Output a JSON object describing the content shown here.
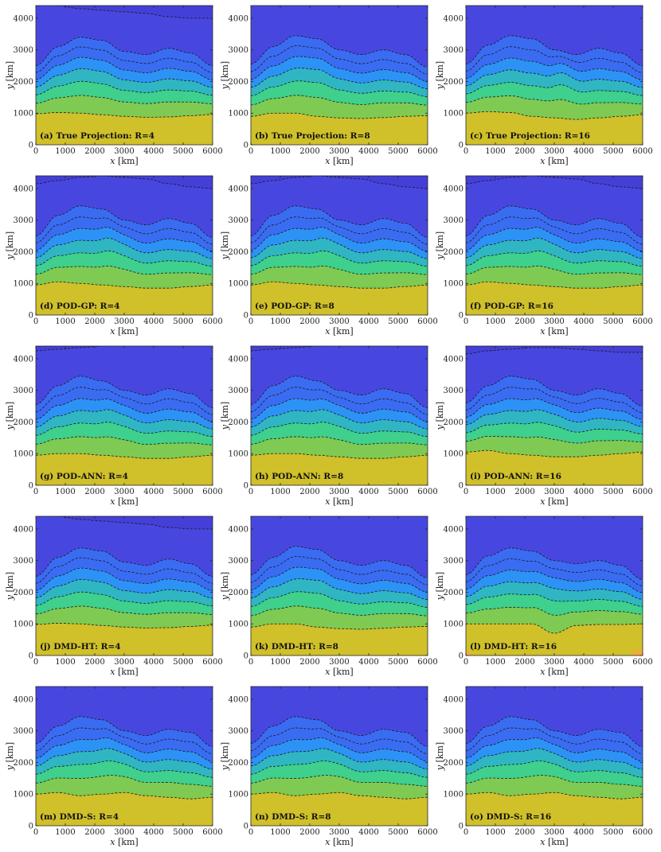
{
  "figure": {
    "xlabel_var": "x",
    "xlabel_unit": " [km]",
    "ylabel_var": "y",
    "ylabel_unit": " [km]",
    "x_ticks": [
      "0",
      "1000",
      "2000",
      "3000",
      "4000",
      "5000",
      "6000"
    ],
    "y_ticks": [
      "0",
      "1000",
      "2000",
      "3000",
      "4000"
    ]
  },
  "colors": {
    "levels": [
      "#d0c02a",
      "#7fca52",
      "#3ed08c",
      "#2fb6c2",
      "#2d92f5",
      "#3a6cf2",
      "#4747e0",
      "#4138cf",
      "#3a2eb6"
    ],
    "warm_patch": "#f5a83b"
  },
  "chart_data": {
    "type": "contour",
    "xlim": [
      0,
      6000
    ],
    "ylim": [
      0,
      4400
    ],
    "x_ticks": [
      0,
      1000,
      2000,
      3000,
      4000,
      5000,
      6000
    ],
    "y_ticks": [
      0,
      1000,
      2000,
      3000,
      4000
    ],
    "xlabel": "x [km]",
    "ylabel": "y [km]",
    "grid": false,
    "panels": [
      {
        "label": "(a) True Projection: R=4",
        "method": "True Projection",
        "R": 4,
        "variant": 0
      },
      {
        "label": "(b) True Projection: R=8",
        "method": "True Projection",
        "R": 8,
        "variant": 1
      },
      {
        "label": "(c) True Projection: R=16",
        "method": "True Projection",
        "R": 16,
        "variant": 2
      },
      {
        "label": "(d) POD-GP: R=4",
        "method": "POD-GP",
        "R": 4,
        "variant": 3
      },
      {
        "label": "(e) POD-GP: R=8",
        "method": "POD-GP",
        "R": 8,
        "variant": 3
      },
      {
        "label": "(f) POD-GP: R=16",
        "method": "POD-GP",
        "R": 16,
        "variant": 3
      },
      {
        "label": "(g) POD-ANN: R=4",
        "method": "POD-ANN",
        "R": 4,
        "variant": 4
      },
      {
        "label": "(h) POD-ANN: R=8",
        "method": "POD-ANN",
        "R": 8,
        "variant": 4
      },
      {
        "label": "(i) POD-ANN: R=16",
        "method": "POD-ANN",
        "R": 16,
        "variant": 5
      },
      {
        "label": "(j) DMD-HT: R=4",
        "method": "DMD-HT",
        "R": 4,
        "variant": 0
      },
      {
        "label": "(k) DMD-HT: R=8",
        "method": "DMD-HT",
        "R": 8,
        "variant": 1
      },
      {
        "label": "(l) DMD-HT: R=16",
        "method": "DMD-HT",
        "R": 16,
        "variant": 6
      },
      {
        "label": "(m) DMD-S: R=4",
        "method": "DMD-S",
        "R": 4,
        "variant": 7
      },
      {
        "label": "(n) DMD-S: R=8",
        "method": "DMD-S",
        "R": 8,
        "variant": 7
      },
      {
        "label": "(o) DMD-S: R=16",
        "method": "DMD-S",
        "R": 16,
        "variant": 7
      }
    ],
    "field_variants": [
      {
        "lower_boundary_km": [
          980,
          1020,
          1000,
          950,
          900,
          870,
          880,
          920,
          960
        ],
        "interface_bumps": [
          {
            "x": 1800,
            "amp": 80,
            "w": 900
          }
        ],
        "upper_boundary_km": [
          2500,
          3100,
          3400,
          3300,
          2950,
          2850,
          3050,
          2900,
          2500
        ],
        "top_line_km": [
          4450,
          4400,
          4300,
          4250,
          4200,
          4150,
          4050,
          4000,
          4000
        ]
      },
      {
        "lower_boundary_km": [
          900,
          1000,
          1000,
          900,
          850,
          830,
          860,
          900,
          920
        ],
        "interface_bumps": [
          {
            "x": 2200,
            "amp": 120,
            "w": 800
          }
        ],
        "upper_boundary_km": [
          2550,
          3100,
          3450,
          3350,
          3000,
          2850,
          3000,
          2850,
          2450
        ],
        "top_line_km": [
          4450,
          4450,
          4450,
          4450,
          4450,
          4450,
          4450,
          4450,
          4450
        ]
      },
      {
        "lower_boundary_km": [
          1000,
          1050,
          1020,
          900,
          850,
          800,
          850,
          900,
          950
        ],
        "interface_bumps": [
          {
            "x": 3300,
            "amp": 260,
            "w": 500
          }
        ],
        "upper_boundary_km": [
          2550,
          3150,
          3450,
          3350,
          3000,
          2850,
          3050,
          2900,
          2500
        ],
        "top_line_km": [
          4450,
          4450,
          4450,
          4450,
          4450,
          4450,
          4450,
          4450,
          4450
        ]
      },
      {
        "lower_boundary_km": [
          950,
          1050,
          1000,
          950,
          900,
          850,
          850,
          900,
          950
        ],
        "interface_bumps": [
          {
            "x": 2700,
            "amp": 230,
            "w": 550
          }
        ],
        "upper_boundary_km": [
          2500,
          3150,
          3450,
          3350,
          3000,
          2850,
          3050,
          2900,
          2450
        ],
        "top_line_km": [
          4150,
          4250,
          4350,
          4400,
          4350,
          4300,
          4150,
          4050,
          4000
        ]
      },
      {
        "lower_boundary_km": [
          950,
          1000,
          1000,
          950,
          900,
          850,
          850,
          900,
          950
        ],
        "interface_bumps": [
          {
            "x": 2700,
            "amp": 200,
            "w": 600
          }
        ],
        "upper_boundary_km": [
          2550,
          3150,
          3450,
          3300,
          3000,
          2850,
          3050,
          2900,
          2450
        ],
        "top_line_km": [
          4250,
          4300,
          4350,
          4400,
          4450,
          4450,
          4450,
          4450,
          4450
        ]
      },
      {
        "lower_boundary_km": [
          1050,
          1100,
          1000,
          950,
          900,
          900,
          950,
          1000,
          1050
        ],
        "interface_bumps": [
          {
            "x": 2800,
            "amp": 200,
            "w": 600
          }
        ],
        "upper_boundary_km": [
          2600,
          3150,
          3450,
          3350,
          3000,
          2850,
          3050,
          2900,
          2500
        ],
        "top_line_km": [
          4150,
          4250,
          4300,
          4350,
          4350,
          4300,
          4250,
          4200,
          4200
        ]
      },
      {
        "lower_boundary_km": [
          1000,
          1000,
          1000,
          1000,
          700,
          950,
          980,
          980,
          1000
        ],
        "interface_bumps": [
          {
            "x": 2900,
            "amp": 150,
            "w": 500
          }
        ],
        "upper_boundary_km": [
          2550,
          3150,
          3400,
          3300,
          3000,
          2900,
          3000,
          2850,
          2400
        ],
        "top_line_km": [
          4450,
          4450,
          4450,
          4450,
          4450,
          4450,
          4450,
          4450,
          4450
        ]
      },
      {
        "lower_boundary_km": [
          1000,
          1050,
          950,
          1000,
          1050,
          950,
          900,
          850,
          900
        ],
        "interface_bumps": [
          {
            "x": 2700,
            "amp": 200,
            "w": 600
          }
        ],
        "upper_boundary_km": [
          2600,
          3150,
          3450,
          3350,
          3000,
          2850,
          3050,
          2950,
          2500
        ],
        "top_line_km": [
          4450,
          4450,
          4450,
          4450,
          4450,
          4450,
          4450,
          4450,
          4450
        ]
      }
    ]
  }
}
